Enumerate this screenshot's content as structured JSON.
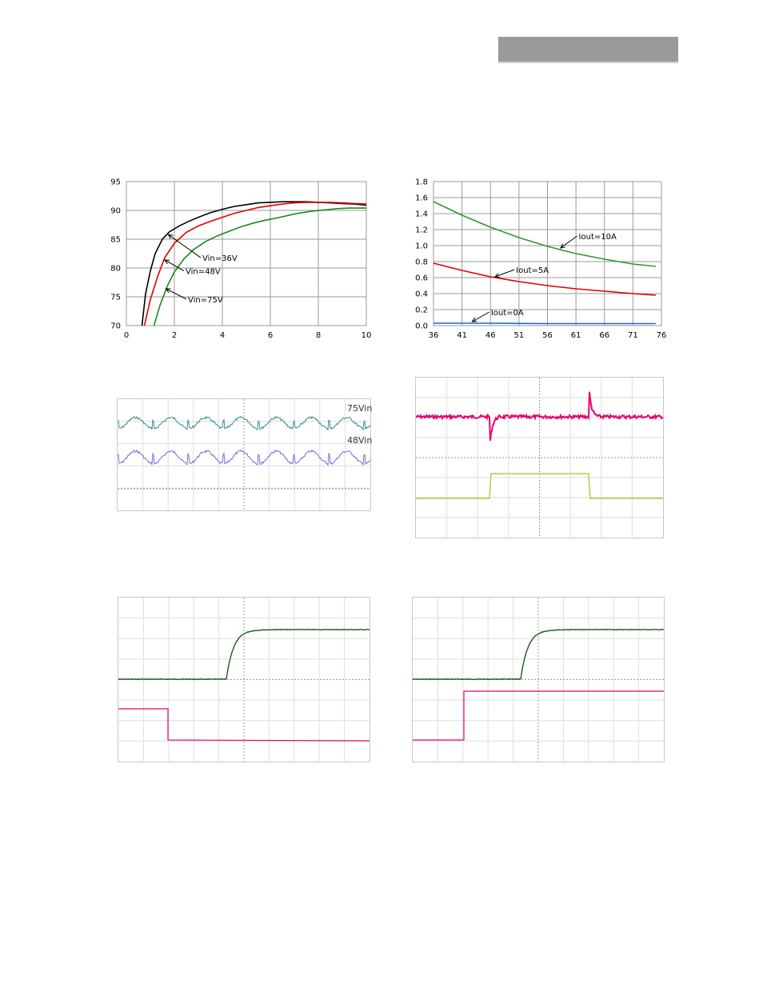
{
  "header": {
    "color": "#9a9a9a"
  },
  "chart_data": [
    {
      "type": "line",
      "xlim": [
        0,
        10
      ],
      "ylim": [
        70,
        95
      ],
      "x_ticks": [
        "0",
        "2",
        "4",
        "6",
        "8",
        "10"
      ],
      "y_ticks": [
        "95",
        "90",
        "85",
        "80",
        "75",
        "70"
      ],
      "grid": true,
      "series": [
        {
          "name": "Vin=36V",
          "color": "#000000",
          "x": [
            0.65,
            0.8,
            1.0,
            1.2,
            1.5,
            1.8,
            2.2,
            2.6,
            3.0,
            3.5,
            4.0,
            4.5,
            5.0,
            5.5,
            6.0,
            6.5,
            7.0,
            7.5,
            8.0,
            8.5,
            9.0,
            9.5,
            10.0
          ],
          "y": [
            70,
            75.5,
            79.5,
            82.5,
            85,
            86.3,
            87.3,
            88.1,
            88.8,
            89.6,
            90.2,
            90.7,
            91.0,
            91.3,
            91.4,
            91.5,
            91.5,
            91.5,
            91.4,
            91.3,
            91.2,
            91.1,
            90.9
          ]
        },
        {
          "name": "Vin=48V",
          "color": "#e00000",
          "x": [
            0.75,
            1.0,
            1.3,
            1.6,
            2.0,
            2.5,
            3.0,
            3.5,
            4.0,
            4.5,
            5.0,
            5.5,
            6.0,
            6.5,
            7.0,
            7.5,
            8.0,
            8.5,
            9.0,
            9.5,
            10.0
          ],
          "y": [
            70,
            74.5,
            78.5,
            81.8,
            84.3,
            86.2,
            87.3,
            88.1,
            88.8,
            89.5,
            90.0,
            90.5,
            90.8,
            91.1,
            91.3,
            91.4,
            91.4,
            91.4,
            91.3,
            91.2,
            91.1
          ]
        },
        {
          "name": "Vin=75V",
          "color": "#1a8a1a",
          "x": [
            1.15,
            1.4,
            1.7,
            2.0,
            2.4,
            2.8,
            3.3,
            3.8,
            4.3,
            4.8,
            5.3,
            5.8,
            6.3,
            6.8,
            7.3,
            7.8,
            8.3,
            8.8,
            9.3,
            9.8,
            10.0
          ],
          "y": [
            70,
            73.5,
            76.8,
            79.3,
            81.6,
            83.2,
            84.6,
            85.6,
            86.4,
            87.2,
            87.8,
            88.3,
            88.7,
            89.2,
            89.6,
            89.9,
            90.1,
            90.3,
            90.4,
            90.4,
            90.4
          ]
        }
      ],
      "annotations": [
        "Vin=36V",
        "Vin=48V",
        "Vin=75V"
      ]
    },
    {
      "type": "line",
      "xlim": [
        36,
        76
      ],
      "ylim": [
        0,
        1.8
      ],
      "x_ticks": [
        "36",
        "41",
        "46",
        "51",
        "56",
        "61",
        "66",
        "71",
        "76"
      ],
      "y_ticks": [
        "1.8",
        "1.6",
        "1.4",
        "1.2",
        "1.0",
        "0.8",
        "0.6",
        "0.4",
        "0.2",
        "0.0"
      ],
      "grid": true,
      "series": [
        {
          "name": "Iout=10A",
          "color": "#2a9a2a",
          "x": [
            36,
            41,
            46,
            51,
            56,
            61,
            66,
            71,
            75
          ],
          "y": [
            1.55,
            1.38,
            1.23,
            1.1,
            0.99,
            0.9,
            0.83,
            0.77,
            0.74
          ]
        },
        {
          "name": "Iout=5A",
          "color": "#e00000",
          "x": [
            36,
            41,
            46,
            51,
            56,
            61,
            66,
            71,
            75
          ],
          "y": [
            0.78,
            0.69,
            0.61,
            0.55,
            0.5,
            0.46,
            0.43,
            0.4,
            0.38
          ]
        },
        {
          "name": "Iout=0A",
          "color": "#1a6ad6",
          "x": [
            36,
            46,
            56,
            66,
            75
          ],
          "y": [
            0.03,
            0.03,
            0.025,
            0.025,
            0.025
          ]
        }
      ],
      "annotations": [
        "Iout=10A",
        "Iout=5A",
        "Iout=0A"
      ]
    }
  ],
  "scopes": {
    "ripple": {
      "label_top": "75Vin",
      "label_bottom": "48Vin",
      "color_top": "#3f8a8a",
      "color_bottom": "#6f6fe0"
    },
    "transient": {
      "color_top": "#e8006e",
      "color_bottom": "#b8b820"
    },
    "startup_left": {
      "color_top": "#1f5a1f",
      "color_bottom": "#e8006e"
    },
    "startup_right": {
      "color_top": "#1f5a1f",
      "color_bottom": "#e8006e"
    }
  }
}
